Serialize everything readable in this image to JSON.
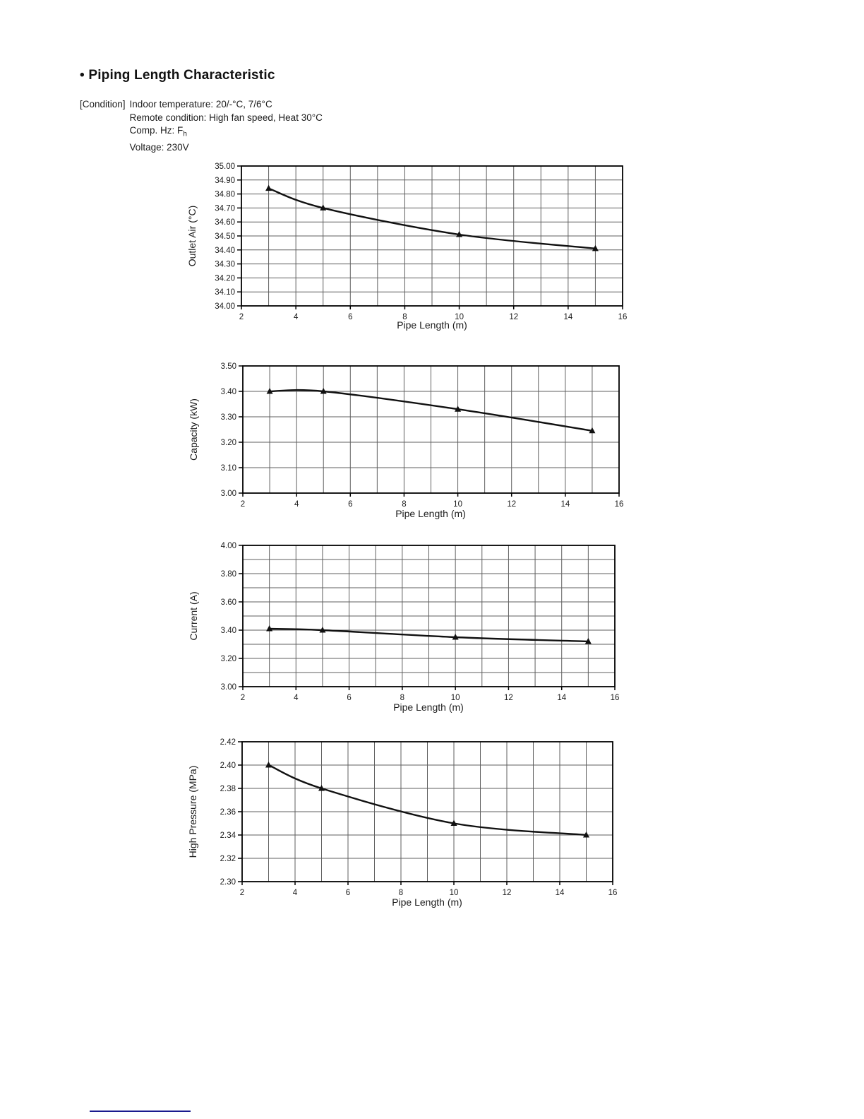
{
  "header": {
    "title": "• Piping Length Characteristic"
  },
  "conditions": {
    "label": "[Condition]",
    "line1": "Indoor temperature: 20/-°C, 7/6°C",
    "line2": "Remote condition: High fan speed, Heat 30°C",
    "line3_main": "Comp. Hz: F",
    "line3_sub": "h",
    "line4": "Voltage: 230V"
  },
  "colors": {
    "text": "#1a1a1a",
    "grid": "#5f5f5f",
    "axis": "#000000",
    "series": "#111111",
    "footer_line": "#1b1b8e"
  },
  "chart_data": [
    {
      "type": "line",
      "ylabel": "Outlet Air (°C)",
      "xlabel": "Pipe Length (m)",
      "x": [
        3,
        5,
        10,
        15
      ],
      "values": [
        34.84,
        34.7,
        34.51,
        34.41
      ],
      "xlim": [
        2,
        16
      ],
      "x_grid_step": 1,
      "x_label_step": 2,
      "ylim": [
        34.0,
        35.0
      ],
      "y_grid_step": 0.1,
      "y_label_step": 0.1,
      "y_decimals": 2,
      "marker": "triangle",
      "grid": true,
      "legend": "none"
    },
    {
      "type": "line",
      "ylabel": "Capacity (kW)",
      "xlabel": "Pipe Length (m)",
      "x": [
        3,
        5,
        10,
        15
      ],
      "values": [
        3.4,
        3.4,
        3.33,
        3.245
      ],
      "xlim": [
        2,
        16
      ],
      "x_grid_step": 1,
      "x_label_step": 2,
      "ylim": [
        3.0,
        3.5
      ],
      "y_grid_step": 0.1,
      "y_label_step": 0.1,
      "y_decimals": 2,
      "marker": "triangle",
      "grid": true,
      "legend": "none"
    },
    {
      "type": "line",
      "ylabel": "Current (A)",
      "xlabel": "Pipe Length (m)",
      "x": [
        3,
        5,
        10,
        15
      ],
      "values": [
        3.41,
        3.4,
        3.35,
        3.32
      ],
      "xlim": [
        2,
        16
      ],
      "x_grid_step": 1,
      "x_label_step": 2,
      "ylim": [
        3.0,
        4.0
      ],
      "y_grid_step": 0.1,
      "y_label_step": 0.2,
      "y_decimals": 2,
      "marker": "triangle",
      "grid": true,
      "legend": "none"
    },
    {
      "type": "line",
      "ylabel": "High Pressure (MPa)",
      "xlabel": "Pipe Length (m)",
      "x": [
        3,
        5,
        10,
        15
      ],
      "values": [
        2.4,
        2.38,
        2.35,
        2.34
      ],
      "xlim": [
        2,
        16
      ],
      "x_grid_step": 1,
      "x_label_step": 2,
      "ylim": [
        2.3,
        2.42
      ],
      "y_grid_step": 0.02,
      "y_label_step": 0.02,
      "y_decimals": 2,
      "marker": "triangle",
      "grid": true,
      "legend": "none"
    }
  ]
}
